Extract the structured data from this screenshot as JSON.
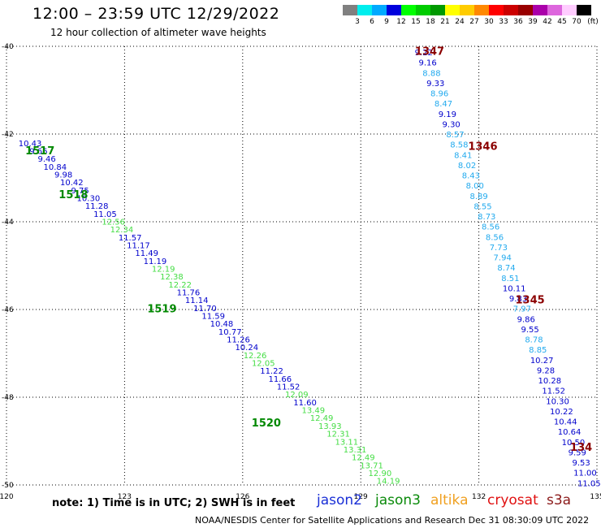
{
  "header": {
    "title": "12:00 – 23:59 UTC 12/29/2022",
    "subtitle": "12 hour collection of altimeter wave heights"
  },
  "footer": {
    "note": "note:  1) Time is in UTC; 2) SWH is in feet",
    "credit": "NOAA/NESDIS Center for Satellite Applications and Research    Dec 31 08:30:09 UTC 2022"
  },
  "satellites": [
    {
      "name": "jason2",
      "color": "#1a2fd6"
    },
    {
      "name": "jason3",
      "color": "#0a8a0a"
    },
    {
      "name": "altika",
      "color": "#f0a020"
    },
    {
      "name": "cryosat",
      "color": "#e01010"
    },
    {
      "name": "s3a",
      "color": "#8b1a1a"
    }
  ],
  "color_scale": {
    "unit": "(ft)",
    "labels": [
      "3",
      "6",
      "9",
      "12",
      "15",
      "18",
      "21",
      "24",
      "27",
      "30",
      "33",
      "36",
      "39",
      "42",
      "45",
      "70"
    ],
    "colors": [
      "#808080",
      "#00eeee",
      "#00aaff",
      "#0000dd",
      "#00ff00",
      "#00cc00",
      "#009900",
      "#ffff00",
      "#ffcc00",
      "#ff8800",
      "#ff0000",
      "#cc0000",
      "#990000",
      "#aa00aa",
      "#dd66dd",
      "#ffccff",
      "#000000"
    ]
  },
  "chart_data": {
    "type": "scatter",
    "xlim": [
      120,
      135
    ],
    "ylim": [
      -50,
      -40
    ],
    "x_ticks": [
      "120",
      "123",
      "126",
      "129",
      "132",
      "135"
    ],
    "y_ticks": [
      "-40",
      "-42",
      "-44",
      "-46",
      "-48",
      "-50"
    ],
    "grid": true,
    "colors": {
      "darkblue": "#0000cc",
      "lightblue": "#22aaee",
      "lightgreen": "#44dd44"
    },
    "orbits": [
      {
        "label": "1517",
        "lon": 120.85,
        "lat": -42.37,
        "color": "#008800"
      },
      {
        "label": "1518",
        "lon": 121.7,
        "lat": -43.37,
        "color": "#008800"
      },
      {
        "label": "1519",
        "lon": 123.95,
        "lat": -45.97,
        "color": "#008800"
      },
      {
        "label": "1520",
        "lon": 126.6,
        "lat": -48.57,
        "color": "#008800"
      },
      {
        "label": "1347",
        "lon": 130.75,
        "lat": -40.1,
        "color": "#8b0000"
      },
      {
        "label": "1346",
        "lon": 132.1,
        "lat": -42.27,
        "color": "#8b0000"
      },
      {
        "label": "1345",
        "lon": 133.3,
        "lat": -45.77,
        "color": "#8b0000"
      },
      {
        "label": "134",
        "lon": 134.6,
        "lat": -49.13,
        "color": "#8b0000"
      }
    ],
    "tracks": [
      {
        "name": "pass-1517-1520",
        "lon": [
          120.6,
          129.7
        ],
        "lat": [
          -42.2,
          -49.9
        ],
        "points": [
          {
            "v": "10.43",
            "c": "darkblue"
          },
          {
            "v": "9.66",
            "c": "darkblue"
          },
          {
            "v": "9.46",
            "c": "darkblue"
          },
          {
            "v": "10.84",
            "c": "darkblue"
          },
          {
            "v": "9.98",
            "c": "darkblue"
          },
          {
            "v": "10.42",
            "c": "darkblue"
          },
          {
            "v": "9.75",
            "c": "darkblue"
          },
          {
            "v": "10.30",
            "c": "darkblue"
          },
          {
            "v": "11.28",
            "c": "darkblue"
          },
          {
            "v": "11.05",
            "c": "darkblue"
          },
          {
            "v": "12.56",
            "c": "lightgreen"
          },
          {
            "v": "12.34",
            "c": "lightgreen"
          },
          {
            "v": "11.57",
            "c": "darkblue"
          },
          {
            "v": "11.17",
            "c": "darkblue"
          },
          {
            "v": "11.49",
            "c": "darkblue"
          },
          {
            "v": "11.19",
            "c": "darkblue"
          },
          {
            "v": "12.19",
            "c": "lightgreen"
          },
          {
            "v": "12.38",
            "c": "lightgreen"
          },
          {
            "v": "12.22",
            "c": "lightgreen"
          },
          {
            "v": "11.76",
            "c": "darkblue"
          },
          {
            "v": "11.14",
            "c": "darkblue"
          },
          {
            "v": "11.70",
            "c": "darkblue"
          },
          {
            "v": "11.59",
            "c": "darkblue"
          },
          {
            "v": "10.48",
            "c": "darkblue"
          },
          {
            "v": "10.77",
            "c": "darkblue"
          },
          {
            "v": "11.26",
            "c": "darkblue"
          },
          {
            "v": "10.24",
            "c": "darkblue"
          },
          {
            "v": "12.26",
            "c": "lightgreen"
          },
          {
            "v": "12.05",
            "c": "lightgreen"
          },
          {
            "v": "11.22",
            "c": "darkblue"
          },
          {
            "v": "11.66",
            "c": "darkblue"
          },
          {
            "v": "11.52",
            "c": "darkblue"
          },
          {
            "v": "12.09",
            "c": "lightgreen"
          },
          {
            "v": "11.60",
            "c": "darkblue"
          },
          {
            "v": "13.49",
            "c": "lightgreen"
          },
          {
            "v": "12.49",
            "c": "lightgreen"
          },
          {
            "v": "13.93",
            "c": "lightgreen"
          },
          {
            "v": "12.31",
            "c": "lightgreen"
          },
          {
            "v": "13.11",
            "c": "lightgreen"
          },
          {
            "v": "13.31",
            "c": "lightgreen"
          },
          {
            "v": "12.49",
            "c": "lightgreen"
          },
          {
            "v": "13.71",
            "c": "lightgreen"
          },
          {
            "v": "12.90",
            "c": "lightgreen"
          },
          {
            "v": "14.19",
            "c": "lightgreen"
          }
        ]
      },
      {
        "name": "pass-1347-134",
        "lon": [
          130.6,
          134.8
        ],
        "lat": [
          -40.13,
          -49.95
        ],
        "points": [
          {
            "v": "9.22",
            "c": "darkblue"
          },
          {
            "v": "9.16",
            "c": "darkblue"
          },
          {
            "v": "8.88",
            "c": "lightblue"
          },
          {
            "v": "9.33",
            "c": "darkblue"
          },
          {
            "v": "8.96",
            "c": "lightblue"
          },
          {
            "v": "8.47",
            "c": "lightblue"
          },
          {
            "v": "9.19",
            "c": "darkblue"
          },
          {
            "v": "9.30",
            "c": "darkblue"
          },
          {
            "v": "8.57",
            "c": "lightblue"
          },
          {
            "v": "8.58",
            "c": "lightblue"
          },
          {
            "v": "8.41",
            "c": "lightblue"
          },
          {
            "v": "8.02",
            "c": "lightblue"
          },
          {
            "v": "8.43",
            "c": "lightblue"
          },
          {
            "v": "8.00",
            "c": "lightblue"
          },
          {
            "v": "8.89",
            "c": "lightblue"
          },
          {
            "v": "8.55",
            "c": "lightblue"
          },
          {
            "v": "8.73",
            "c": "lightblue"
          },
          {
            "v": "8.56",
            "c": "lightblue"
          },
          {
            "v": "8.56",
            "c": "lightblue"
          },
          {
            "v": "7.73",
            "c": "lightblue"
          },
          {
            "v": "7.94",
            "c": "lightblue"
          },
          {
            "v": "8.74",
            "c": "lightblue"
          },
          {
            "v": "8.51",
            "c": "lightblue"
          },
          {
            "v": "10.11",
            "c": "darkblue"
          },
          {
            "v": "9.83",
            "c": "darkblue"
          },
          {
            "v": "7.97",
            "c": "lightblue"
          },
          {
            "v": "9.86",
            "c": "darkblue"
          },
          {
            "v": "9.55",
            "c": "darkblue"
          },
          {
            "v": "8.78",
            "c": "lightblue"
          },
          {
            "v": "8.85",
            "c": "lightblue"
          },
          {
            "v": "10.27",
            "c": "darkblue"
          },
          {
            "v": "9.28",
            "c": "darkblue"
          },
          {
            "v": "10.28",
            "c": "darkblue"
          },
          {
            "v": "11.52",
            "c": "darkblue"
          },
          {
            "v": "10.30",
            "c": "darkblue"
          },
          {
            "v": "10.22",
            "c": "darkblue"
          },
          {
            "v": "10.44",
            "c": "darkblue"
          },
          {
            "v": "10.64",
            "c": "darkblue"
          },
          {
            "v": "10.50",
            "c": "darkblue"
          },
          {
            "v": "9.59",
            "c": "darkblue"
          },
          {
            "v": "9.53",
            "c": "darkblue"
          },
          {
            "v": "11.00",
            "c": "darkblue"
          },
          {
            "v": "11.05",
            "c": "darkblue"
          }
        ]
      }
    ]
  }
}
